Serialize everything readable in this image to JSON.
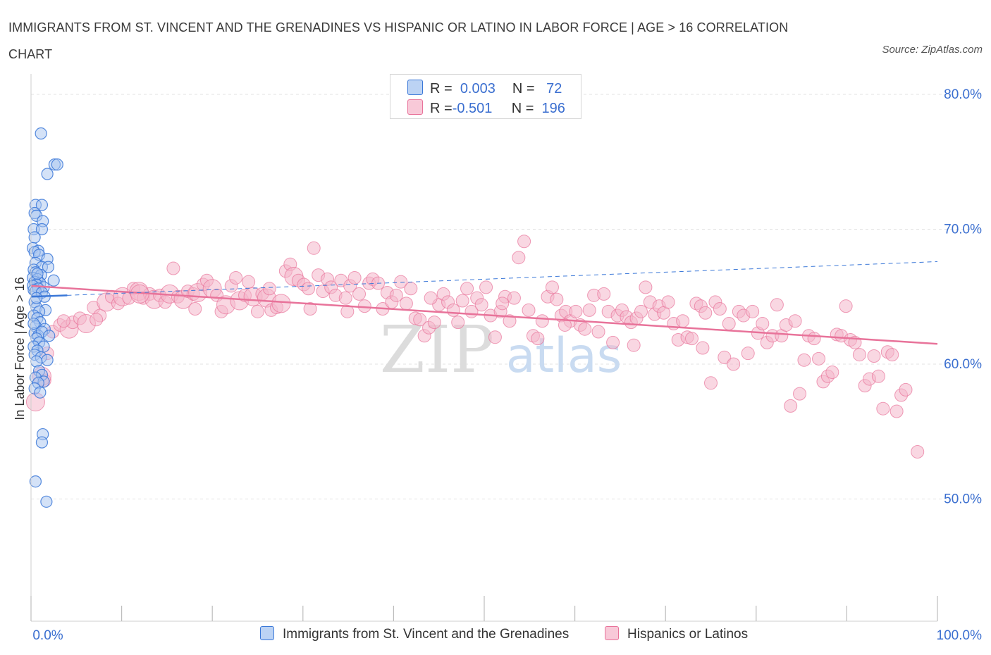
{
  "title": "IMMIGRANTS FROM ST. VINCENT AND THE GRENADINES VS HISPANIC OR LATINO IN LABOR FORCE | AGE > 16 CORRELATION CHART",
  "source": "Source: ZipAtlas.com",
  "watermark": {
    "zip": "ZIP",
    "atlas": "atlas"
  },
  "legend": {
    "r_label": "R =",
    "n_label": "N =",
    "rows": [
      {
        "r": "0.003",
        "n": "72"
      },
      {
        "r": "-0.501",
        "n": "196"
      }
    ]
  },
  "colors": {
    "blue": "#3b78d8",
    "blue_fill": "#a9c6ef",
    "pink": "#e8739a",
    "pink_fill": "#f4b6cb",
    "axis_text": "#3b6fd0"
  },
  "chart_data": {
    "type": "scatter",
    "title": "IMMIGRANTS FROM ST. VINCENT AND THE GRENADINES VS HISPANIC OR LATINO IN LABOR FORCE | AGE > 16 CORRELATION CHART",
    "xlabel": "",
    "ylabel": "In Labor Force | Age > 16",
    "xlim": [
      0,
      100
    ],
    "ylim": [
      40,
      84
    ],
    "x_tick_labels": [
      "0.0%",
      "100.0%"
    ],
    "y_ticks": [
      50,
      60,
      70,
      80
    ],
    "y_tick_labels": [
      "50.0%",
      "60.0%",
      "70.0%",
      "80.0%"
    ],
    "grid": true,
    "legend_position": "top-center",
    "series": [
      {
        "name": "Immigrants from St. Vincent and the Grenadines",
        "color": "#3b78d8",
        "r": 0.003,
        "n": 72,
        "trend": {
          "x": [
            0,
            4
          ],
          "y": [
            65.0,
            65.1
          ]
        },
        "trend_dashed": {
          "x": [
            4,
            100
          ],
          "y": [
            65.1,
            67.6
          ]
        },
        "points": [
          [
            1.1,
            77.1
          ],
          [
            2.6,
            74.8
          ],
          [
            2.9,
            74.8
          ],
          [
            1.8,
            74.1
          ],
          [
            0.5,
            71.8
          ],
          [
            1.2,
            71.8
          ],
          [
            0.4,
            71.2
          ],
          [
            0.6,
            71.0
          ],
          [
            1.3,
            70.6
          ],
          [
            0.3,
            70.0
          ],
          [
            1.2,
            70.0
          ],
          [
            0.4,
            69.4
          ],
          [
            0.2,
            68.6
          ],
          [
            0.8,
            68.4
          ],
          [
            0.4,
            68.3
          ],
          [
            0.9,
            68.1
          ],
          [
            1.8,
            67.8
          ],
          [
            0.5,
            67.5
          ],
          [
            1.2,
            67.2
          ],
          [
            1.9,
            67.2
          ],
          [
            0.3,
            67.0
          ],
          [
            0.5,
            66.8
          ],
          [
            1.1,
            66.6
          ],
          [
            0.2,
            66.4
          ],
          [
            0.7,
            66.3
          ],
          [
            2.5,
            66.2
          ],
          [
            0.4,
            66.1
          ],
          [
            1.0,
            66.0
          ],
          [
            0.6,
            65.9
          ],
          [
            0.2,
            65.8
          ],
          [
            1.4,
            65.7
          ],
          [
            0.8,
            65.6
          ],
          [
            0.3,
            65.5
          ],
          [
            0.5,
            65.4
          ],
          [
            1.2,
            65.3
          ],
          [
            0.4,
            64.6
          ],
          [
            0.6,
            64.2
          ],
          [
            1.6,
            64.0
          ],
          [
            0.9,
            63.9
          ],
          [
            0.3,
            63.6
          ],
          [
            0.7,
            63.4
          ],
          [
            1.0,
            63.1
          ],
          [
            0.5,
            62.8
          ],
          [
            1.5,
            62.6
          ],
          [
            0.4,
            62.3
          ],
          [
            0.8,
            62.1
          ],
          [
            1.2,
            62.4
          ],
          [
            0.6,
            61.9
          ],
          [
            0.9,
            61.6
          ],
          [
            0.3,
            61.3
          ],
          [
            1.4,
            61.3
          ],
          [
            0.7,
            61.0
          ],
          [
            0.4,
            60.7
          ],
          [
            1.1,
            60.5
          ],
          [
            1.8,
            60.3
          ],
          [
            0.6,
            60.2
          ],
          [
            0.9,
            59.5
          ],
          [
            1.2,
            59.2
          ],
          [
            0.5,
            59.0
          ],
          [
            1.4,
            58.7
          ],
          [
            0.8,
            58.6
          ],
          [
            0.4,
            58.2
          ],
          [
            1.0,
            57.9
          ],
          [
            1.3,
            54.8
          ],
          [
            1.2,
            54.2
          ],
          [
            0.5,
            51.3
          ],
          [
            1.7,
            49.8
          ],
          [
            0.7,
            66.7
          ],
          [
            1.5,
            65.0
          ],
          [
            0.3,
            63.0
          ],
          [
            2.0,
            62.1
          ],
          [
            0.6,
            64.9
          ]
        ]
      },
      {
        "name": "Hispanics or Latinos",
        "color": "#e8739a",
        "r": -0.501,
        "n": 196,
        "trend": {
          "x": [
            0,
            100
          ],
          "y": [
            65.8,
            61.5
          ]
        },
        "points": [
          [
            0.5,
            57.2
          ],
          [
            1.5,
            58.8
          ],
          [
            1.8,
            60.8
          ],
          [
            1.2,
            59.1
          ],
          [
            2.4,
            62.4
          ],
          [
            3.2,
            62.9
          ],
          [
            4.2,
            62.6
          ],
          [
            4.6,
            63.1
          ],
          [
            5.4,
            63.4
          ],
          [
            6.1,
            63.0
          ],
          [
            6.9,
            64.2
          ],
          [
            7.6,
            63.6
          ],
          [
            8.3,
            64.6
          ],
          [
            8.9,
            65.0
          ],
          [
            9.6,
            64.5
          ],
          [
            10.1,
            65.0
          ],
          [
            10.8,
            64.9
          ],
          [
            11.3,
            65.6
          ],
          [
            11.9,
            65.4
          ],
          [
            12.4,
            64.9
          ],
          [
            13.1,
            65.2
          ],
          [
            13.6,
            64.8
          ],
          [
            14.2,
            65.1
          ],
          [
            14.8,
            64.6
          ],
          [
            15.3,
            65.2
          ],
          [
            15.7,
            67.1
          ],
          [
            16.2,
            65.0
          ],
          [
            16.8,
            64.8
          ],
          [
            17.3,
            65.4
          ],
          [
            17.9,
            65.2
          ],
          [
            18.4,
            65.3
          ],
          [
            19.0,
            65.9
          ],
          [
            19.4,
            66.2
          ],
          [
            20.0,
            65.6
          ],
          [
            20.5,
            65.1
          ],
          [
            21.0,
            63.9
          ],
          [
            21.5,
            64.4
          ],
          [
            22.1,
            65.8
          ],
          [
            22.6,
            66.4
          ],
          [
            23.0,
            64.7
          ],
          [
            23.6,
            65.1
          ],
          [
            24.0,
            66.1
          ],
          [
            24.5,
            65.0
          ],
          [
            25.0,
            63.9
          ],
          [
            25.5,
            65.2
          ],
          [
            26.0,
            64.9
          ],
          [
            26.5,
            64.0
          ],
          [
            27.1,
            64.2
          ],
          [
            27.6,
            64.5
          ],
          [
            28.1,
            66.9
          ],
          [
            28.6,
            67.4
          ],
          [
            29.0,
            66.5
          ],
          [
            29.5,
            66.2
          ],
          [
            30.1,
            65.9
          ],
          [
            30.6,
            65.6
          ],
          [
            31.2,
            68.6
          ],
          [
            31.7,
            66.6
          ],
          [
            32.2,
            65.4
          ],
          [
            32.7,
            66.3
          ],
          [
            33.1,
            65.7
          ],
          [
            33.6,
            65.1
          ],
          [
            34.2,
            66.2
          ],
          [
            34.7,
            64.9
          ],
          [
            35.2,
            65.8
          ],
          [
            35.7,
            66.4
          ],
          [
            36.2,
            65.2
          ],
          [
            36.8,
            64.3
          ],
          [
            37.3,
            66.0
          ],
          [
            37.7,
            66.3
          ],
          [
            38.3,
            66.0
          ],
          [
            38.8,
            64.1
          ],
          [
            39.3,
            65.3
          ],
          [
            39.8,
            64.6
          ],
          [
            40.3,
            65.1
          ],
          [
            40.8,
            66.1
          ],
          [
            41.4,
            64.5
          ],
          [
            41.9,
            65.6
          ],
          [
            42.4,
            63.4
          ],
          [
            42.9,
            63.3
          ],
          [
            43.4,
            62.1
          ],
          [
            43.9,
            62.7
          ],
          [
            44.5,
            63.1
          ],
          [
            45.0,
            64.4
          ],
          [
            45.5,
            65.2
          ],
          [
            46.0,
            64.6
          ],
          [
            46.6,
            64.0
          ],
          [
            47.1,
            63.1
          ],
          [
            47.6,
            64.7
          ],
          [
            48.1,
            65.6
          ],
          [
            48.6,
            63.9
          ],
          [
            49.2,
            64.9
          ],
          [
            49.7,
            64.4
          ],
          [
            50.2,
            65.7
          ],
          [
            50.7,
            63.6
          ],
          [
            51.2,
            62.0
          ],
          [
            51.8,
            63.9
          ],
          [
            52.3,
            65.0
          ],
          [
            52.8,
            63.2
          ],
          [
            53.3,
            64.9
          ],
          [
            53.8,
            67.9
          ],
          [
            54.4,
            69.1
          ],
          [
            54.9,
            64.0
          ],
          [
            55.4,
            62.1
          ],
          [
            55.9,
            61.9
          ],
          [
            56.4,
            63.2
          ],
          [
            57.0,
            65.0
          ],
          [
            57.5,
            65.7
          ],
          [
            58.0,
            64.8
          ],
          [
            58.5,
            63.6
          ],
          [
            59.0,
            63.9
          ],
          [
            59.5,
            63.2
          ],
          [
            60.1,
            63.9
          ],
          [
            60.6,
            62.9
          ],
          [
            61.1,
            62.6
          ],
          [
            61.6,
            64.0
          ],
          [
            62.1,
            65.1
          ],
          [
            62.6,
            62.4
          ],
          [
            63.2,
            65.2
          ],
          [
            63.7,
            63.9
          ],
          [
            64.2,
            61.6
          ],
          [
            64.7,
            63.6
          ],
          [
            65.2,
            64.0
          ],
          [
            65.7,
            63.5
          ],
          [
            66.2,
            63.1
          ],
          [
            66.8,
            63.4
          ],
          [
            67.3,
            63.9
          ],
          [
            67.8,
            65.7
          ],
          [
            68.3,
            64.6
          ],
          [
            68.8,
            63.7
          ],
          [
            69.3,
            64.3
          ],
          [
            69.8,
            63.8
          ],
          [
            70.3,
            64.6
          ],
          [
            70.9,
            63.0
          ],
          [
            71.4,
            61.8
          ],
          [
            71.9,
            63.2
          ],
          [
            72.4,
            62.0
          ],
          [
            72.9,
            61.9
          ],
          [
            73.4,
            64.5
          ],
          [
            73.9,
            64.3
          ],
          [
            74.4,
            63.8
          ],
          [
            75.0,
            58.6
          ],
          [
            75.5,
            64.6
          ],
          [
            76.0,
            64.1
          ],
          [
            76.5,
            60.5
          ],
          [
            77.0,
            63.0
          ],
          [
            77.5,
            60.0
          ],
          [
            78.1,
            63.9
          ],
          [
            78.6,
            63.6
          ],
          [
            79.1,
            60.8
          ],
          [
            79.6,
            63.9
          ],
          [
            80.2,
            62.3
          ],
          [
            80.7,
            63.0
          ],
          [
            81.2,
            61.6
          ],
          [
            81.8,
            62.1
          ],
          [
            82.3,
            64.4
          ],
          [
            82.8,
            62.1
          ],
          [
            83.3,
            62.9
          ],
          [
            83.8,
            56.9
          ],
          [
            84.3,
            63.2
          ],
          [
            84.8,
            57.8
          ],
          [
            85.3,
            60.3
          ],
          [
            85.8,
            62.1
          ],
          [
            86.4,
            61.9
          ],
          [
            86.9,
            60.4
          ],
          [
            87.4,
            58.7
          ],
          [
            87.9,
            59.1
          ],
          [
            88.4,
            59.4
          ],
          [
            88.9,
            62.2
          ],
          [
            89.4,
            62.1
          ],
          [
            89.9,
            64.3
          ],
          [
            90.4,
            61.8
          ],
          [
            90.9,
            61.6
          ],
          [
            91.4,
            60.7
          ],
          [
            92.0,
            58.4
          ],
          [
            92.5,
            58.9
          ],
          [
            93.0,
            60.6
          ],
          [
            93.5,
            59.1
          ],
          [
            94.0,
            56.7
          ],
          [
            94.5,
            60.9
          ],
          [
            95.0,
            60.7
          ],
          [
            95.5,
            56.5
          ],
          [
            96.0,
            57.7
          ],
          [
            96.5,
            58.1
          ],
          [
            97.8,
            53.5
          ],
          [
            3.6,
            63.2
          ],
          [
            7.2,
            63.3
          ],
          [
            12.0,
            65.2
          ],
          [
            18.1,
            64.1
          ],
          [
            26.3,
            65.6
          ],
          [
            30.8,
            64.1
          ],
          [
            34.9,
            63.9
          ],
          [
            44.1,
            64.9
          ],
          [
            52.0,
            64.5
          ],
          [
            58.9,
            62.9
          ],
          [
            66.5,
            61.4
          ],
          [
            74.1,
            61.2
          ]
        ]
      }
    ]
  }
}
